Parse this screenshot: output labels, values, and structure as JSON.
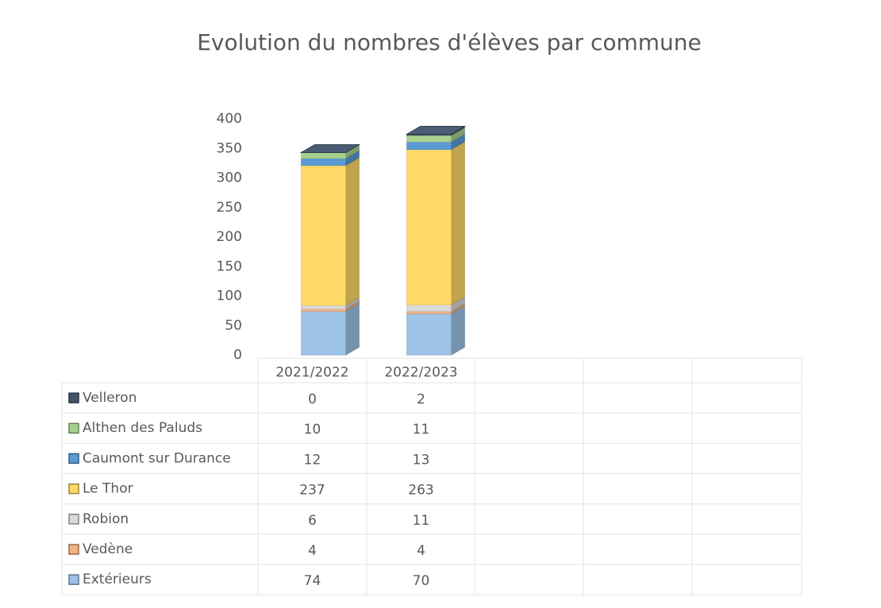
{
  "chart_data": {
    "type": "bar",
    "stacked": true,
    "title": "Evolution du nombres d'élèves par commune",
    "categories": [
      "2021/2022",
      "2022/2023"
    ],
    "series": [
      {
        "name": "Extérieurs",
        "color": "#9dc3e6",
        "values": [
          74,
          70
        ]
      },
      {
        "name": "Vedène",
        "color": "#f4b183",
        "values": [
          4,
          4
        ]
      },
      {
        "name": "Robion",
        "color": "#d9d9d9",
        "values": [
          6,
          11
        ]
      },
      {
        "name": "Le Thor",
        "color": "#ffd966",
        "values": [
          237,
          263
        ]
      },
      {
        "name": "Caumont sur Durance",
        "color": "#5b9bd5",
        "values": [
          12,
          13
        ]
      },
      {
        "name": "Althen des Paluds",
        "color": "#a9d18e",
        "values": [
          10,
          11
        ]
      },
      {
        "name": "Velleron",
        "color": "#44546a",
        "values": [
          0,
          2
        ]
      }
    ],
    "ylim": [
      0,
      400
    ],
    "yticks": [
      0,
      50,
      100,
      150,
      200,
      250,
      300,
      350,
      400
    ]
  }
}
